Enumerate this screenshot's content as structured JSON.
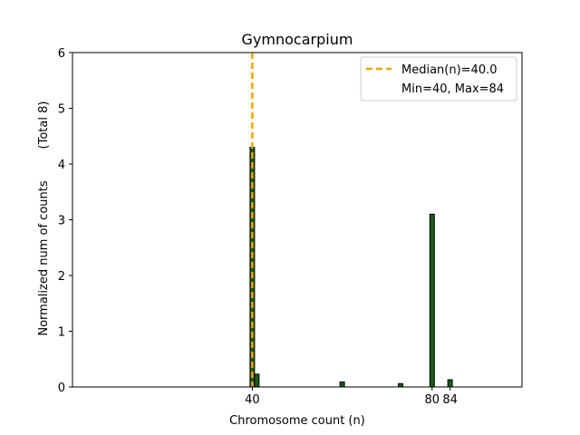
{
  "chart_data": {
    "type": "bar",
    "title": "Gymnocarpium",
    "xlabel": "Chromosome count (n)",
    "ylabel": "Normalized num of counts",
    "ylabel_note": "(Total 8)",
    "xlim": [
      0,
      100
    ],
    "ylim": [
      0,
      6
    ],
    "yticks": [
      0,
      1,
      2,
      3,
      4,
      5,
      6
    ],
    "xticks": [
      {
        "value": 40,
        "label": "40"
      },
      {
        "value": 80,
        "label": "80"
      },
      {
        "value": 84,
        "label": "84"
      }
    ],
    "bar_width": 1,
    "bar_color": "#1a5c1a",
    "bars": [
      {
        "x": 40,
        "value": 4.3
      },
      {
        "x": 41,
        "value": 0.23
      },
      {
        "x": 60,
        "value": 0.09
      },
      {
        "x": 73,
        "value": 0.06
      },
      {
        "x": 80,
        "value": 3.1
      },
      {
        "x": 84,
        "value": 0.13
      }
    ],
    "median": {
      "value": 40,
      "color": "#f0a500",
      "label": "Median(n)=40.0"
    },
    "range_label": "Min=40, Max=84",
    "legend_position": "top-right"
  }
}
